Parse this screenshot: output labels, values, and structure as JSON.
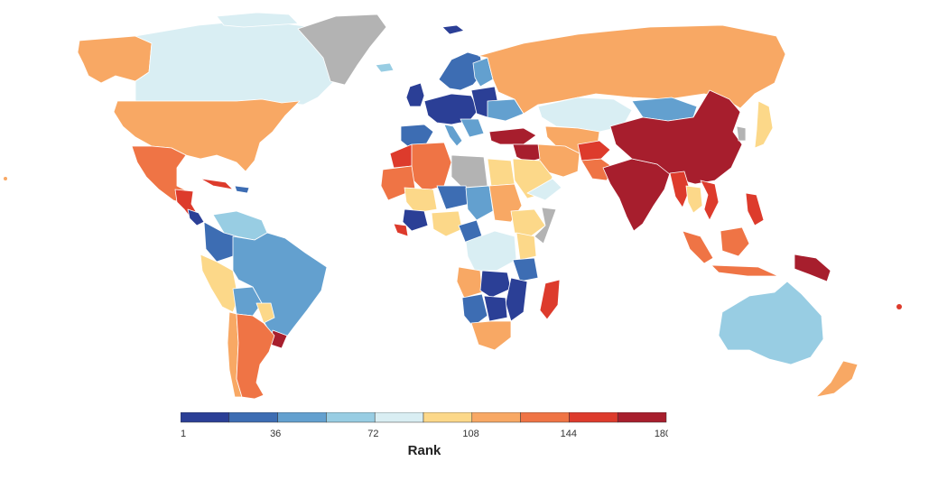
{
  "legend": {
    "title": "Rank",
    "tick_labels": [
      "1",
      "36",
      "72",
      "108",
      "144",
      "180"
    ],
    "tick_values": [
      1,
      36,
      72,
      108,
      144,
      180
    ],
    "range": [
      1,
      180
    ],
    "colors": [
      "#2b3f96",
      "#3d6db3",
      "#63a0cf",
      "#98cde3",
      "#d9eef3",
      "#fcd889",
      "#f8a864",
      "#ef7445",
      "#dd3b2c",
      "#a71e2d"
    ]
  },
  "colors": {
    "land_no_data": "#b3b3b3",
    "background": "#ffffff",
    "border": "#ffffff"
  }
}
